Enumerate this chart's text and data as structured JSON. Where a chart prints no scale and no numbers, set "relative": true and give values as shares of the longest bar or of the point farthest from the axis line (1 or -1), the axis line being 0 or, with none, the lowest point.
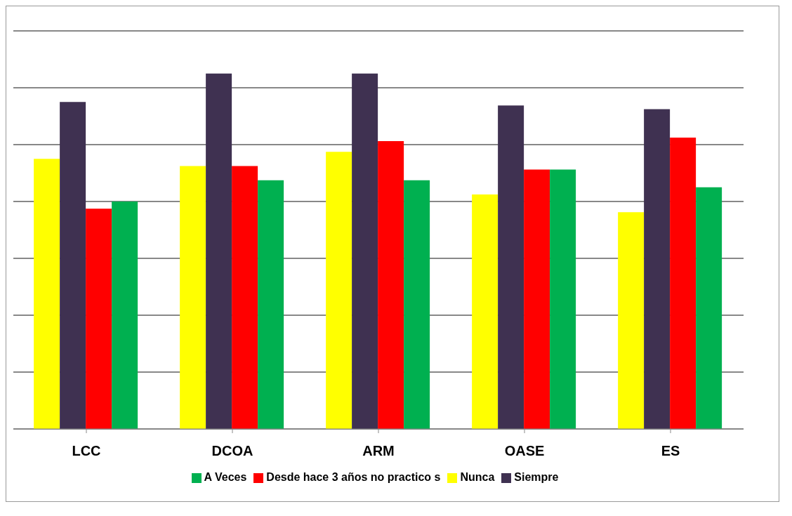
{
  "chart_data": {
    "type": "bar",
    "relative": true,
    "categories": [
      "LCC",
      "DCOA",
      "ARM",
      "OASE",
      "ES"
    ],
    "series": [
      {
        "name": "Nunca",
        "color": "#ffff00",
        "values": [
          0.76,
          0.74,
          0.78,
          0.66,
          0.61
        ]
      },
      {
        "name": "Siempre",
        "color": "#3f3151",
        "values": [
          0.92,
          1,
          1,
          0.91,
          0.9
        ]
      },
      {
        "name": "Desde hace 3 años no practico s",
        "color": "#ff0000",
        "values": [
          0.62,
          0.74,
          0.81,
          0.73,
          0.82
        ]
      },
      {
        "name": "A Veces",
        "color": "#00b050",
        "values": [
          0.64,
          0.7,
          0.7,
          0.73,
          0.68
        ]
      }
    ],
    "grid": "y",
    "legend": "bottom"
  }
}
